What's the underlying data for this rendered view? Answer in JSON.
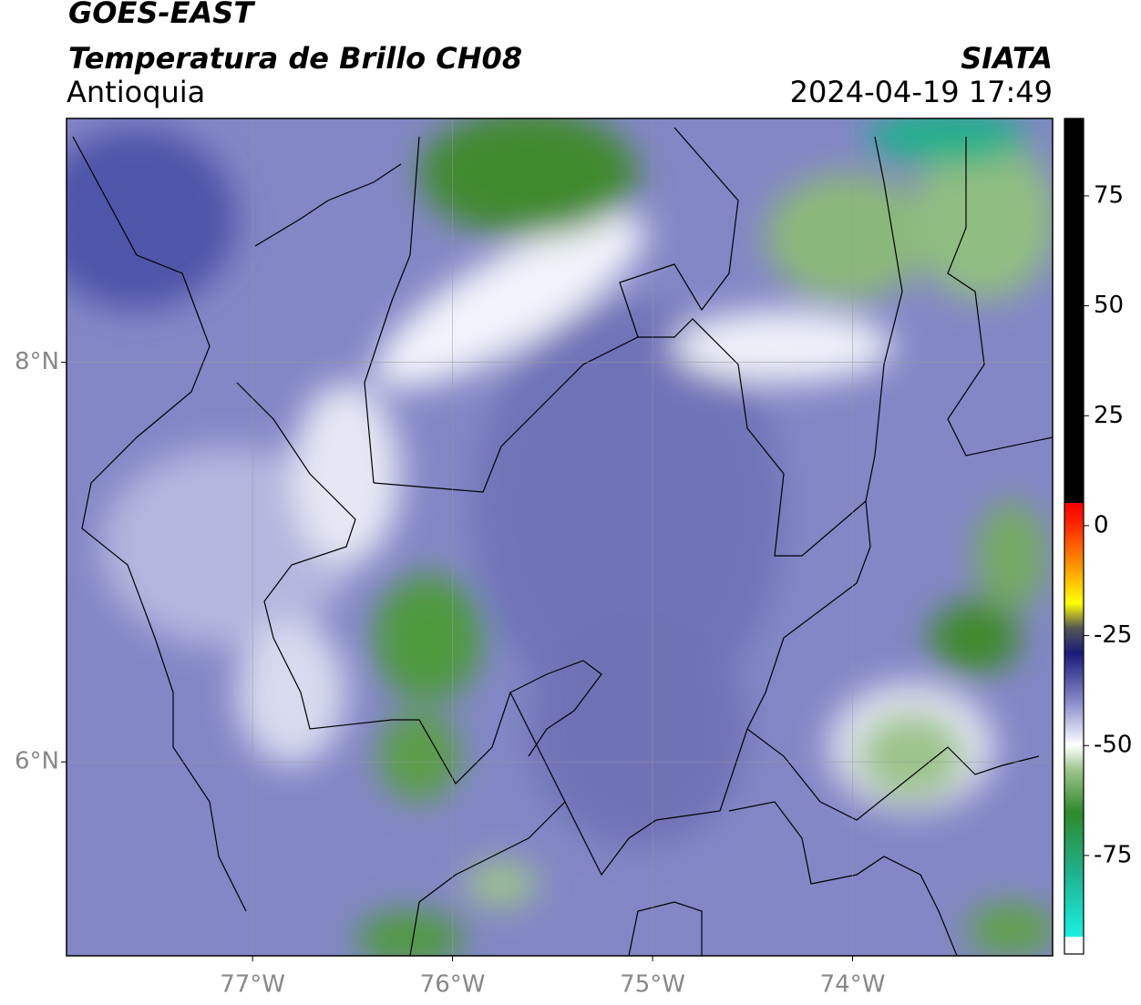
{
  "header": {
    "title": "GOES-EAST",
    "subtitle": "Temperatura de Brillo CH08",
    "region": "Antioquia",
    "agency": "SIATA",
    "datetime": "2024-04-19 17:49"
  },
  "map": {
    "xlim": [
      -77.93,
      -73.0
    ],
    "ylim": [
      5.03,
      9.22
    ],
    "xticks": [
      {
        "value": -77,
        "label": "77°W"
      },
      {
        "value": -76,
        "label": "76°W"
      },
      {
        "value": -75,
        "label": "75°W"
      },
      {
        "value": -74,
        "label": "74°W"
      }
    ],
    "yticks": [
      {
        "value": 8,
        "label": "8°N"
      },
      {
        "value": 6,
        "label": "6°N"
      }
    ]
  },
  "colorbar": {
    "lim": [
      -97.4,
      92.6
    ],
    "ticks": [
      75,
      50,
      25,
      0,
      -25,
      -50,
      -75
    ]
  }
}
